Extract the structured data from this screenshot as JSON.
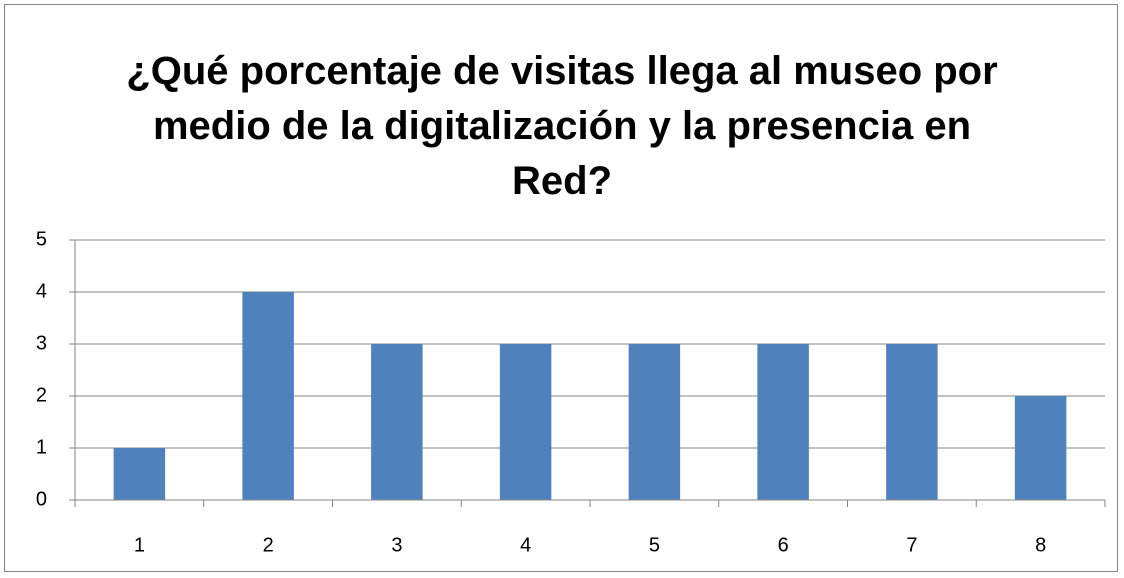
{
  "chart_data": {
    "type": "bar",
    "title": "¿Qué porcentaje de visitas llega al museo por medio de la digitalización y la presencia en Red?",
    "categories": [
      "1",
      "2",
      "3",
      "4",
      "5",
      "6",
      "7",
      "8"
    ],
    "values": [
      1,
      4,
      3,
      3,
      3,
      3,
      3,
      2
    ],
    "color": "#4f81bd",
    "ylim": [
      0,
      5
    ],
    "yticks": [
      0,
      1,
      2,
      3,
      4,
      5
    ],
    "grid": true
  }
}
